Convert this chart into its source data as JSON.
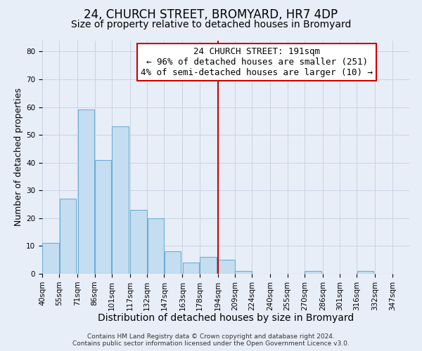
{
  "title": "24, CHURCH STREET, BROMYARD, HR7 4DP",
  "subtitle": "Size of property relative to detached houses in Bromyard",
  "xlabel": "Distribution of detached houses by size in Bromyard",
  "ylabel": "Number of detached properties",
  "bar_left_edges": [
    40,
    55,
    71,
    86,
    101,
    117,
    132,
    147,
    163,
    178,
    194,
    209,
    224,
    240,
    255,
    270,
    286,
    301,
    316,
    332
  ],
  "bar_heights": [
    11,
    27,
    59,
    41,
    53,
    23,
    20,
    8,
    4,
    6,
    5,
    1,
    0,
    0,
    0,
    1,
    0,
    0,
    1,
    0
  ],
  "bar_widths": [
    15,
    15,
    15,
    15,
    15,
    15,
    15,
    15,
    15,
    15,
    15,
    15,
    15,
    15,
    15,
    15,
    15,
    15,
    15,
    15
  ],
  "tick_labels": [
    "40sqm",
    "55sqm",
    "71sqm",
    "86sqm",
    "101sqm",
    "117sqm",
    "132sqm",
    "147sqm",
    "163sqm",
    "178sqm",
    "194sqm",
    "209sqm",
    "224sqm",
    "240sqm",
    "255sqm",
    "270sqm",
    "286sqm",
    "301sqm",
    "316sqm",
    "332sqm",
    "347sqm"
  ],
  "tick_positions": [
    40,
    55,
    71,
    86,
    101,
    117,
    132,
    147,
    163,
    178,
    194,
    209,
    224,
    240,
    255,
    270,
    286,
    301,
    316,
    332,
    347
  ],
  "bar_color": "#c5ddf0",
  "bar_edge_color": "#6aafd6",
  "vline_x": 194,
  "vline_color": "#cc0000",
  "ylim": [
    0,
    84
  ],
  "xlim": [
    40,
    362
  ],
  "yticks": [
    0,
    10,
    20,
    30,
    40,
    50,
    60,
    70,
    80
  ],
  "grid_color": "#c8d4e3",
  "background_color": "#e8eef8",
  "annotation_title": "24 CHURCH STREET: 191sqm",
  "annotation_line1": "← 96% of detached houses are smaller (251)",
  "annotation_line2": "4% of semi-detached houses are larger (10) →",
  "annotation_box_color": "#ffffff",
  "annotation_box_edge_color": "#cc0000",
  "footer_line1": "Contains HM Land Registry data © Crown copyright and database right 2024.",
  "footer_line2": "Contains public sector information licensed under the Open Government Licence v3.0.",
  "title_fontsize": 12,
  "subtitle_fontsize": 10,
  "xlabel_fontsize": 10,
  "ylabel_fontsize": 9,
  "tick_fontsize": 7.5,
  "annotation_fontsize": 9,
  "footer_fontsize": 6.5
}
